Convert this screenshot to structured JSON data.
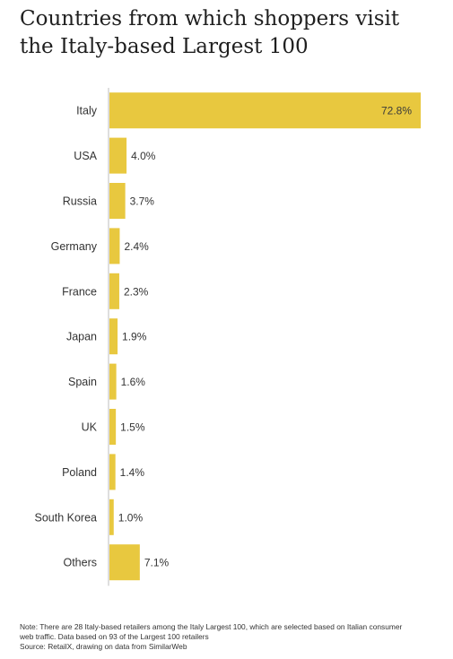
{
  "title": {
    "line1": "Countries from which shoppers visit",
    "line2": "the Italy-based Largest 100"
  },
  "colors": {
    "bar": "#E8C83F",
    "axis": "#bdbdbd",
    "label_inside": "#3a3a3a",
    "text": "#333333"
  },
  "chart_data": {
    "type": "bar",
    "orientation": "horizontal",
    "title": "Countries from which shoppers visit the Italy-based Largest 100",
    "categories": [
      "Italy",
      "USA",
      "Russia",
      "Germany",
      "France",
      "Japan",
      "Spain",
      "UK",
      "Poland",
      "South Korea",
      "Others"
    ],
    "values": [
      72.8,
      4.0,
      3.7,
      2.4,
      2.3,
      1.9,
      1.6,
      1.5,
      1.4,
      1.0,
      7.1
    ],
    "data_labels": [
      "72.8%",
      "4.0%",
      "3.7%",
      "2.4%",
      "2.3%",
      "1.9%",
      "1.6%",
      "1.5%",
      "1.4%",
      "1.0%",
      "7.1%"
    ],
    "unit": "%",
    "xlim": [
      0,
      72.8
    ],
    "grid": false,
    "legend": "none"
  },
  "footer": {
    "note_line1": "Note: There are 28 Italy-based retailers among the Italy Largest 100, which are selected based on Italian consumer",
    "note_line2": "web traffic. Data based on 93 of the Largest 100 retailers",
    "source": "Source: RetailX, drawing on data from SimilarWeb"
  }
}
